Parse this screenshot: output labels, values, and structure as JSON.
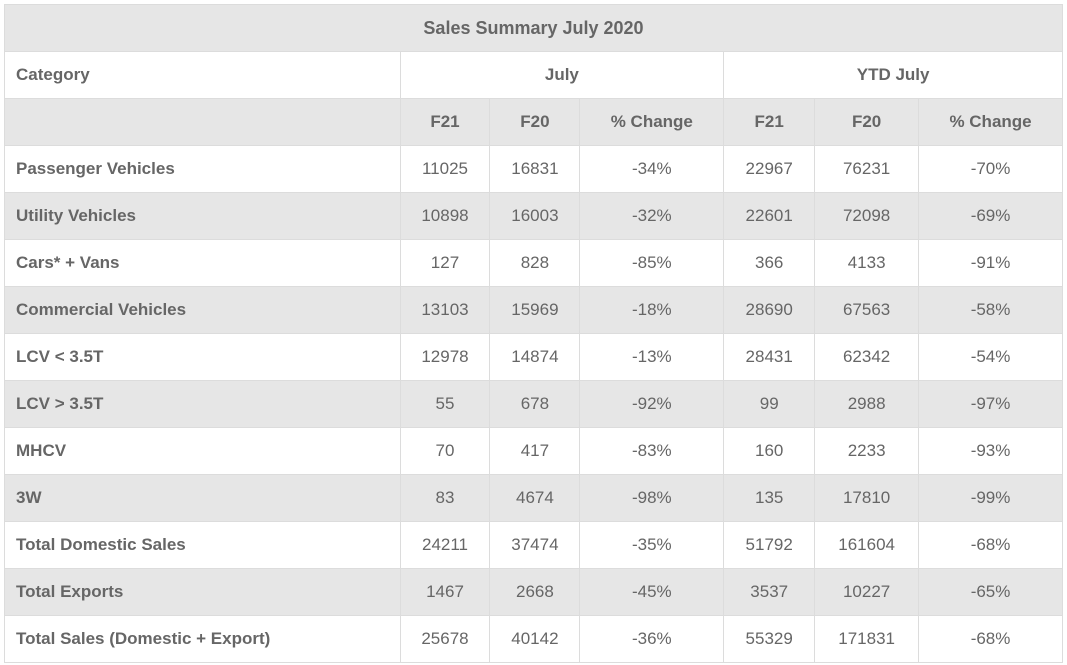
{
  "title": "Sales Summary July 2020",
  "header": {
    "category": "Category",
    "group1": "July",
    "group2": "YTD July"
  },
  "subheader": [
    "F21",
    "F20",
    "% Change",
    "F21",
    "F20",
    "% Change"
  ],
  "rows": [
    {
      "category": "Passenger Vehicles",
      "values": [
        "11025",
        "16831",
        "-34%",
        "22967",
        "76231",
        "-70%"
      ]
    },
    {
      "category": "Utility Vehicles",
      "values": [
        "10898",
        "16003",
        "-32%",
        "22601",
        "72098",
        "-69%"
      ]
    },
    {
      "category": "Cars* + Vans",
      "values": [
        "127",
        "828",
        "-85%",
        "366",
        "4133",
        "-91%"
      ]
    },
    {
      "category": "Commercial Vehicles",
      "values": [
        "13103",
        "15969",
        "-18%",
        "28690",
        "67563",
        "-58%"
      ]
    },
    {
      "category": "LCV < 3.5T",
      "values": [
        "12978",
        "14874",
        "-13%",
        "28431",
        "62342",
        "-54%"
      ]
    },
    {
      "category": "LCV > 3.5T",
      "values": [
        "55",
        "678",
        "-92%",
        "99",
        "2988",
        "-97%"
      ]
    },
    {
      "category": "MHCV",
      "values": [
        "70",
        "417",
        "-83%",
        "160",
        "2233",
        "-93%"
      ]
    },
    {
      "category": "3W",
      "values": [
        "83",
        "4674",
        "-98%",
        "135",
        "17810",
        "-99%"
      ]
    },
    {
      "category": "Total Domestic Sales",
      "values": [
        "24211",
        "37474",
        "-35%",
        "51792",
        "161604",
        "-68%"
      ]
    },
    {
      "category": "Total Exports",
      "values": [
        "1467",
        "2668",
        "-45%",
        "3537",
        "10227",
        "-65%"
      ]
    },
    {
      "category": "Total Sales (Domestic + Export)",
      "values": [
        "25678",
        "40142",
        "-36%",
        "55329",
        "171831",
        "-68%"
      ]
    }
  ]
}
